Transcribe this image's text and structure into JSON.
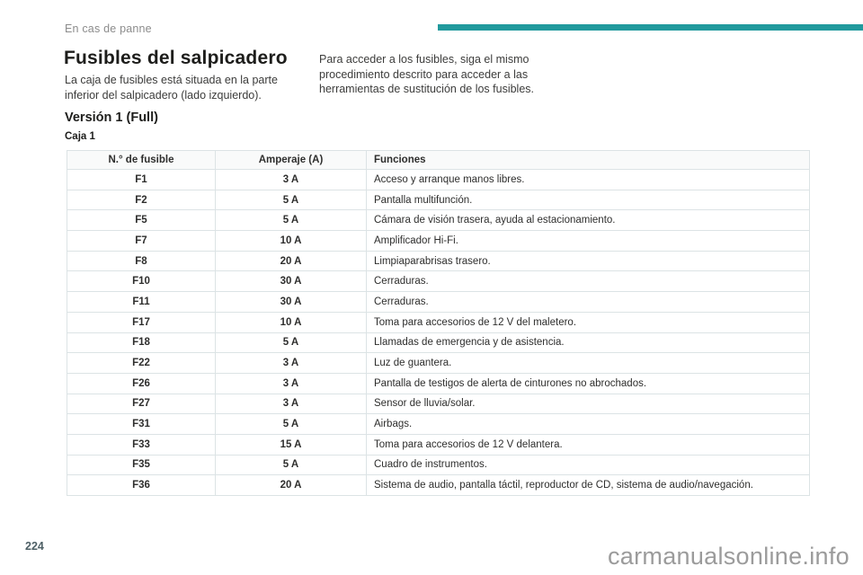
{
  "page": {
    "section_header": "En cas de panne",
    "page_number": "224",
    "watermark": "carmanualsonline.info",
    "accent_color": "#219a9d"
  },
  "article": {
    "title": "Fusibles del salpicadero",
    "intro_left": "La caja de fusibles está situada en la parte inferior del salpicadero (lado izquierdo).",
    "intro_right": "Para acceder a los fusibles, siga el mismo procedimiento descrito para acceder a las herramientas de sustitución de los fusibles.",
    "subtitle": "Versión 1 (Full)",
    "table_caption": "Caja 1"
  },
  "fuse_table": {
    "columns": [
      "N.° de fusible",
      "Amperaje (A)",
      "Funciones"
    ],
    "rows": [
      [
        "F1",
        "3 A",
        "Acceso y arranque manos libres."
      ],
      [
        "F2",
        "5 A",
        "Pantalla multifunción."
      ],
      [
        "F5",
        "5 A",
        "Cámara de visión trasera, ayuda al estacionamiento."
      ],
      [
        "F7",
        "10 A",
        "Amplificador Hi-Fi."
      ],
      [
        "F8",
        "20 A",
        "Limpiaparabrisas trasero."
      ],
      [
        "F10",
        "30 A",
        "Cerraduras."
      ],
      [
        "F11",
        "30 A",
        "Cerraduras."
      ],
      [
        "F17",
        "10 A",
        "Toma para accesorios de 12 V del maletero."
      ],
      [
        "F18",
        "5 A",
        "Llamadas de emergencia y de asistencia."
      ],
      [
        "F22",
        "3 A",
        "Luz de guantera."
      ],
      [
        "F26",
        "3 A",
        "Pantalla de testigos de alerta de cinturones no abrochados."
      ],
      [
        "F27",
        "3 A",
        "Sensor de lluvia/solar."
      ],
      [
        "F31",
        "5 A",
        "Airbags."
      ],
      [
        "F33",
        "15 A",
        "Toma para accesorios de 12 V delantera."
      ],
      [
        "F35",
        "5 A",
        "Cuadro de instrumentos."
      ],
      [
        "F36",
        "20 A",
        "Sistema de audio, pantalla táctil, reproductor de CD, sistema de audio/navegación."
      ]
    ]
  }
}
